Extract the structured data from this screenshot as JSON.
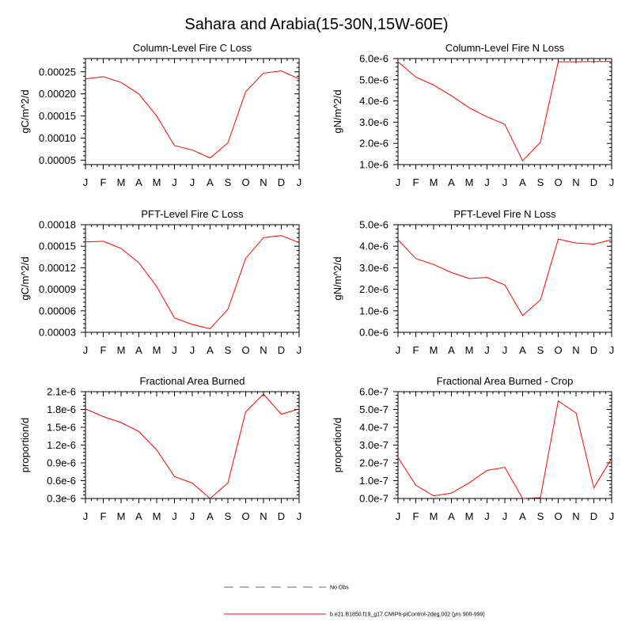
{
  "title": "Sahara and Arabia(15-30N,15W-60E)",
  "legend": {
    "obs_label": "No Obs",
    "model_label": "b.e21.B1850.f19_g17.CMIP6-piControl-2deg.002 (yrs 900-999)",
    "model_color": "#ff0000",
    "obs_color": "#999999"
  },
  "chart_data": [
    {
      "type": "line",
      "title": "Column-Level Fire C Loss",
      "ylabel": "gC/m^2/d",
      "xlabel": "",
      "categories": [
        "J",
        "F",
        "M",
        "A",
        "M",
        "J",
        "J",
        "A",
        "S",
        "O",
        "N",
        "D",
        "J"
      ],
      "ylim": [
        4e-05,
        0.00028
      ],
      "yticks": [
        5e-05,
        0.0001,
        0.00015,
        0.0002,
        0.00025
      ],
      "ytick_labels": [
        "0.00005",
        "0.00010",
        "0.00015",
        "0.00020",
        "0.00025"
      ],
      "series": [
        {
          "name": "b.e21.B1850.f19_g17.CMIP6-piControl-2deg.002",
          "color": "#ff0000",
          "values": [
            0.000234,
            0.000239,
            0.000226,
            0.0002,
            0.00015,
            8.3e-05,
            7.3e-05,
            5.5e-05,
            8.9e-05,
            0.000205,
            0.000247,
            0.000252,
            0.000234
          ]
        }
      ]
    },
    {
      "type": "line",
      "title": "Column-Level Fire N Loss",
      "ylabel": "gN/m^2/d",
      "xlabel": "",
      "categories": [
        "J",
        "F",
        "M",
        "A",
        "M",
        "J",
        "J",
        "A",
        "S",
        "O",
        "N",
        "D",
        "J"
      ],
      "ylim": [
        1e-06,
        6e-06
      ],
      "yticks": [
        1e-06,
        2e-06,
        3e-06,
        4e-06,
        5e-06,
        6e-06
      ],
      "ytick_labels": [
        "1.0e-6",
        "2.0e-6",
        "3.0e-6",
        "4.0e-6",
        "5.0e-6",
        "6.0e-6"
      ],
      "series": [
        {
          "name": "b.e21.B1850.f19_g17.CMIP6-piControl-2deg.002",
          "color": "#ff0000",
          "values": [
            5.85e-06,
            5.13e-06,
            4.75e-06,
            4.25e-06,
            3.68e-06,
            3.25e-06,
            2.9e-06,
            1.18e-06,
            2.05e-06,
            5.85e-06,
            5.85e-06,
            5.86e-06,
            5.86e-06
          ]
        }
      ]
    },
    {
      "type": "line",
      "title": "PFT-Level Fire C Loss",
      "ylabel": "gC/m^2/d",
      "xlabel": "",
      "categories": [
        "J",
        "F",
        "M",
        "A",
        "M",
        "J",
        "J",
        "A",
        "S",
        "O",
        "N",
        "D",
        "J"
      ],
      "ylim": [
        3e-05,
        0.00018
      ],
      "yticks": [
        3e-05,
        6e-05,
        9e-05,
        0.00012,
        0.00015,
        0.00018
      ],
      "ytick_labels": [
        "0.00003",
        "0.00006",
        "0.00009",
        "0.00012",
        "0.00015",
        "0.00018"
      ],
      "series": [
        {
          "name": "b.e21.B1850.f19_g17.CMIP6-piControl-2deg.002",
          "color": "#ff0000",
          "values": [
            0.000156,
            0.000157,
            0.000147,
            0.000127,
            9.4e-05,
            5e-05,
            4.1e-05,
            3.5e-05,
            6.2e-05,
            0.000133,
            0.000162,
            0.000165,
            0.000155
          ]
        }
      ]
    },
    {
      "type": "line",
      "title": "PFT-Level Fire N Loss",
      "ylabel": "gN/m^2/d",
      "xlabel": "",
      "categories": [
        "J",
        "F",
        "M",
        "A",
        "M",
        "J",
        "J",
        "A",
        "S",
        "O",
        "N",
        "D",
        "J"
      ],
      "ylim": [
        0,
        5e-06
      ],
      "yticks": [
        0,
        1e-06,
        2e-06,
        3e-06,
        4e-06,
        5e-06
      ],
      "ytick_labels": [
        "0.0e-6",
        "1.0e-6",
        "2.0e-6",
        "3.0e-6",
        "4.0e-6",
        "5.0e-6"
      ],
      "series": [
        {
          "name": "b.e21.B1850.f19_g17.CMIP6-piControl-2deg.002",
          "color": "#ff0000",
          "values": [
            4.3e-06,
            3.43e-06,
            3.15e-06,
            2.78e-06,
            2.5e-06,
            2.55e-06,
            2.2e-06,
            7.8e-07,
            1.5e-06,
            4.33e-06,
            4.15e-06,
            4.1e-06,
            4.3e-06
          ]
        }
      ]
    },
    {
      "type": "line",
      "title": "Fractional Area Burned",
      "ylabel": "proportion/d",
      "xlabel": "",
      "categories": [
        "J",
        "F",
        "M",
        "A",
        "M",
        "J",
        "J",
        "A",
        "S",
        "O",
        "N",
        "D",
        "J"
      ],
      "ylim": [
        3e-07,
        2.1e-06
      ],
      "yticks": [
        3e-07,
        6e-07,
        9e-07,
        1.2e-06,
        1.5e-06,
        1.8e-06,
        2.1e-06
      ],
      "ytick_labels": [
        "0.3e-6",
        "0.6e-6",
        "0.9e-6",
        "1.2e-6",
        "1.5e-6",
        "1.8e-6",
        "2.1e-6"
      ],
      "series": [
        {
          "name": "b.e21.B1850.f19_g17.CMIP6-piControl-2deg.002",
          "color": "#ff0000",
          "values": [
            1.81e-06,
            1.68e-06,
            1.58e-06,
            1.43e-06,
            1.12e-06,
            6.7e-07,
            5.6e-07,
            3e-07,
            5.6e-07,
            1.76e-06,
            2.06e-06,
            1.72e-06,
            1.81e-06
          ]
        }
      ]
    },
    {
      "type": "line",
      "title": "Fractional Area Burned - Crop",
      "ylabel": "proportion/d",
      "xlabel": "",
      "categories": [
        "J",
        "F",
        "M",
        "A",
        "M",
        "J",
        "J",
        "A",
        "S",
        "O",
        "N",
        "D",
        "J"
      ],
      "ylim": [
        0,
        6e-07
      ],
      "yticks": [
        0,
        1e-07,
        2e-07,
        3e-07,
        4e-07,
        5e-07,
        6e-07
      ],
      "ytick_labels": [
        "0.0e-7",
        "1.0e-7",
        "2.0e-7",
        "3.0e-7",
        "4.0e-7",
        "5.0e-7",
        "6.0e-7"
      ],
      "series": [
        {
          "name": "b.e21.B1850.f19_g17.CMIP6-piControl-2deg.002",
          "color": "#ff0000",
          "values": [
            2.3e-07,
            7.5e-08,
            1.5e-08,
            3e-08,
            8.8e-08,
            1.58e-07,
            1.75e-07,
            0.0,
            5e-09,
            5.48e-07,
            4.8e-07,
            6e-08,
            2.25e-07
          ]
        }
      ]
    }
  ]
}
